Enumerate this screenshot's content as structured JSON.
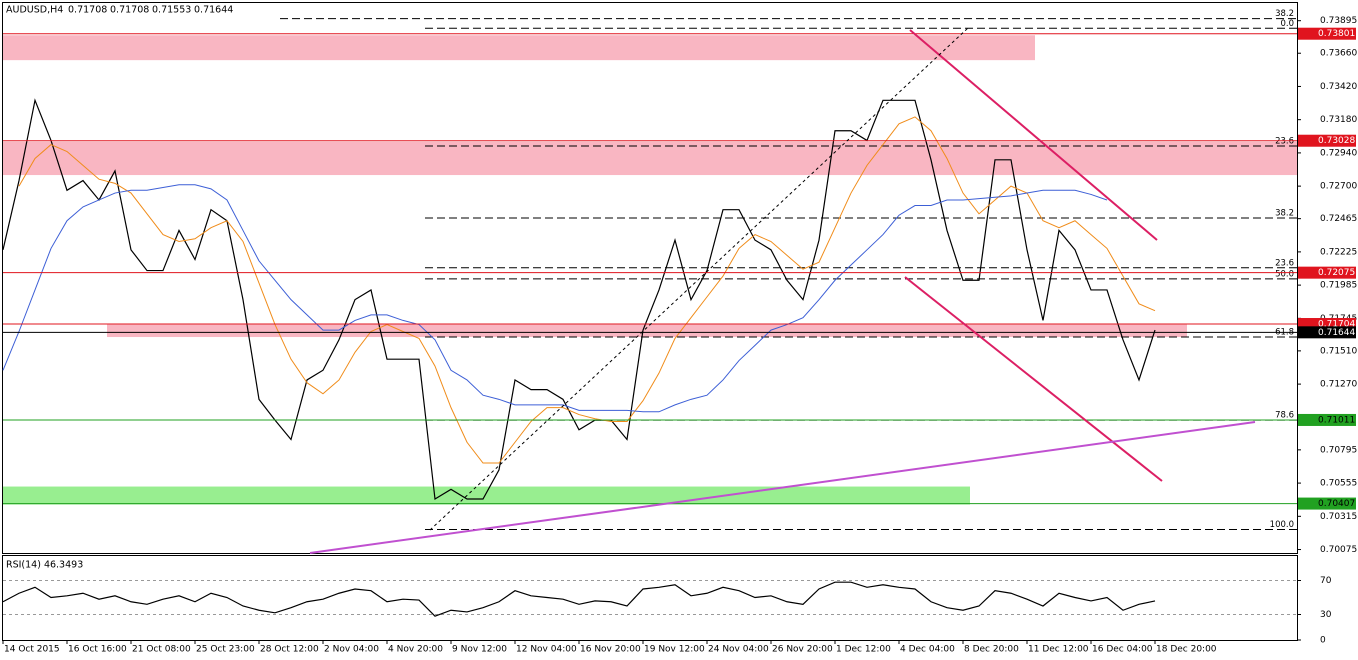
{
  "chart_data": [
    {
      "type": "line",
      "title": "AUDUSD,H4",
      "ohlc": [
        0.71708,
        0.71708,
        0.71553,
        0.71644
      ],
      "categories": [
        "14 Oct 2015",
        null,
        null,
        null,
        "16 Oct 16:00",
        null,
        null,
        null,
        "21 Oct 08:00",
        null,
        null,
        null,
        "25 Oct 23:00",
        null,
        null,
        null,
        "28 Oct 12:00",
        null,
        null,
        null,
        "2 Nov 04:00",
        null,
        null,
        null,
        "4 Nov 20:00",
        null,
        null,
        null,
        "9 Nov 12:00",
        null,
        null,
        null,
        "12 Nov 04:00",
        null,
        null,
        null,
        "16 Nov 20:00",
        null,
        null,
        null,
        "19 Nov 12:00",
        null,
        null,
        null,
        "24 Nov 04:00",
        null,
        null,
        null,
        "26 Nov 20:00",
        null,
        null,
        null,
        "1 Dec 12:00",
        null,
        null,
        null,
        "4 Dec 04:00",
        null,
        null,
        null,
        "8 Dec 20:00",
        null,
        null,
        null,
        "11 Dec 12:00",
        null,
        null,
        null,
        "16 Dec 04:00",
        null,
        null,
        null,
        "18 Dec 20:00"
      ],
      "series": [
        {
          "name": "Close",
          "color": "#000000",
          "values": [
            0.7224,
            0.7274,
            0.7332,
            0.7303,
            0.7267,
            0.7274,
            0.726,
            0.7281,
            0.7224,
            0.7209,
            0.7209,
            0.7238,
            0.7217,
            0.7253,
            0.7245,
            0.7188,
            0.7116,
            0.7101,
            0.7087,
            0.713,
            0.7137,
            0.7159,
            0.7188,
            0.7195,
            0.7145,
            0.7145,
            0.7145,
            0.7044,
            0.7051,
            0.7044,
            0.7044,
            0.7065,
            0.713,
            0.7123,
            0.7123,
            0.7116,
            0.7094,
            0.7101,
            0.7101,
            0.7087,
            0.7166,
            0.7195,
            0.7231,
            0.7188,
            0.7209,
            0.7253,
            0.7253,
            0.7231,
            0.7224,
            0.7202,
            0.7188,
            0.7231,
            0.731,
            0.731,
            0.7303,
            0.7332,
            0.7332,
            0.7332,
            0.7289,
            0.7238,
            0.7202,
            0.7202,
            0.7289,
            0.7289,
            0.7224,
            0.7173,
            0.7238,
            0.7224,
            0.7195,
            0.7195,
            0.7159,
            0.713,
            0.7166
          ]
        },
        {
          "name": "MA fast",
          "color": "#f08c1a",
          "values": [
            null,
            0.727,
            0.729,
            0.73,
            0.7295,
            0.7285,
            0.7275,
            0.7272,
            0.7265,
            0.725,
            0.7235,
            0.723,
            0.7232,
            0.724,
            0.7245,
            0.723,
            0.72,
            0.717,
            0.7145,
            0.7128,
            0.712,
            0.713,
            0.715,
            0.7165,
            0.717,
            0.7165,
            0.716,
            0.714,
            0.711,
            0.7085,
            0.707,
            0.707,
            0.7085,
            0.71,
            0.711,
            0.711,
            0.7105,
            0.7102,
            0.71,
            0.71,
            0.7115,
            0.7135,
            0.716,
            0.7175,
            0.719,
            0.7205,
            0.7225,
            0.7235,
            0.723,
            0.722,
            0.721,
            0.7215,
            0.724,
            0.7265,
            0.7285,
            0.73,
            0.7315,
            0.732,
            0.731,
            0.729,
            0.7265,
            0.725,
            0.726,
            0.727,
            0.7265,
            0.7245,
            0.724,
            0.7245,
            0.7235,
            0.7225,
            0.7205,
            0.7185,
            0.718
          ]
        },
        {
          "name": "MA slow",
          "color": "#3d5fd6",
          "values": [
            0.7137,
            0.7165,
            0.7195,
            0.7225,
            0.7245,
            0.7255,
            0.726,
            0.7265,
            0.7267,
            0.7267,
            0.7269,
            0.7271,
            0.7271,
            0.7268,
            0.726,
            0.7238,
            0.7216,
            0.7202,
            0.7188,
            0.7177,
            0.7166,
            0.7166,
            0.7173,
            0.7177,
            0.7177,
            0.7173,
            0.717,
            0.7159,
            0.7137,
            0.713,
            0.7119,
            0.7116,
            0.7112,
            0.7112,
            0.7112,
            0.7112,
            0.7108,
            0.7108,
            0.7108,
            0.7108,
            0.7107,
            0.7107,
            0.7112,
            0.7116,
            0.7119,
            0.713,
            0.7144,
            0.7155,
            0.7166,
            0.717,
            0.7175,
            0.7188,
            0.7202,
            0.7213,
            0.7224,
            0.7235,
            0.7249,
            0.7256,
            0.7256,
            0.726,
            0.726,
            0.7261,
            0.7262,
            0.7263,
            0.7265,
            0.7267,
            0.7267,
            0.7267,
            0.7264,
            0.726,
            null,
            null,
            null
          ]
        }
      ],
      "ylim": [
        0.7005,
        0.7403
      ],
      "yticks": [
        0.73895,
        {
          "value": 0.7366,
          "label": "0.73660"
        },
        {
          "value": 0.7342,
          "label": "0.73420"
        },
        {
          "value": 0.7318,
          "label": "0.73180"
        },
        {
          "value": 0.7294,
          "label": "0.72940"
        },
        {
          "value": 0.727,
          "label": "0.72700"
        },
        0.72465,
        0.72225,
        0.71985,
        0.71745,
        {
          "value": 0.7151,
          "label": "0.71510"
        },
        {
          "value": 0.7127,
          "label": "0.71270"
        },
        0.70795,
        0.70555,
        0.70315,
        0.70075
      ],
      "zones": [
        {
          "from": 0.7361,
          "to": 0.7379,
          "color": "#f9b6c2"
        },
        {
          "from": 0.7278,
          "to": 0.7302,
          "color": "#f9b6c2"
        },
        {
          "from": 0.7161,
          "to": 0.717,
          "color": "#f9b6c2"
        },
        {
          "from": 0.704,
          "to": 0.7053,
          "color": "#98ee90"
        }
      ],
      "levels": [
        {
          "value": 0.73801,
          "color": "#e0141e"
        },
        {
          "value": 0.73028,
          "color": "#e0141e"
        },
        {
          "value": 0.72075,
          "color": "#e0141e"
        },
        {
          "value": 0.71704,
          "color": "#e0141e"
        },
        {
          "value": 0.71644,
          "color": "#000000"
        },
        {
          "value": 0.71011,
          "color": "#21a121"
        },
        {
          "value": 0.70407,
          "color": "#21a121"
        }
      ],
      "fib_levels": [
        {
          "value": 0.7391,
          "label": "38.2"
        },
        {
          "value": 0.7384,
          "label": "0.0"
        },
        {
          "value": 0.7299,
          "label": "23.6"
        },
        {
          "value": 0.7247,
          "label": "38.2"
        },
        {
          "value": 0.7211,
          "label": "23.6"
        },
        {
          "value": 0.7203,
          "label": "50.0"
        },
        {
          "value": 0.7161,
          "label": "61.8"
        },
        {
          "value": 0.7101,
          "label": "78.6"
        },
        {
          "value": 0.7022,
          "label": "100.0"
        }
      ]
    },
    {
      "type": "line",
      "title": "RSI(14) 46.3493",
      "series": [
        {
          "name": "RSI",
          "color": "#000000",
          "values": [
            45,
            55,
            62,
            50,
            52,
            55,
            48,
            52,
            45,
            42,
            48,
            52,
            45,
            55,
            50,
            40,
            35,
            32,
            38,
            45,
            48,
            55,
            60,
            58,
            45,
            48,
            47,
            28,
            35,
            33,
            38,
            45,
            58,
            52,
            50,
            48,
            42,
            46,
            45,
            40,
            60,
            62,
            65,
            52,
            55,
            62,
            58,
            50,
            52,
            45,
            42,
            60,
            68,
            68,
            62,
            65,
            62,
            60,
            45,
            38,
            35,
            40,
            58,
            55,
            48,
            40,
            55,
            50,
            46,
            50,
            35,
            42,
            46
          ]
        }
      ],
      "ylim": [
        0,
        100
      ],
      "yticks": [
        70,
        30,
        0
      ]
    }
  ]
}
